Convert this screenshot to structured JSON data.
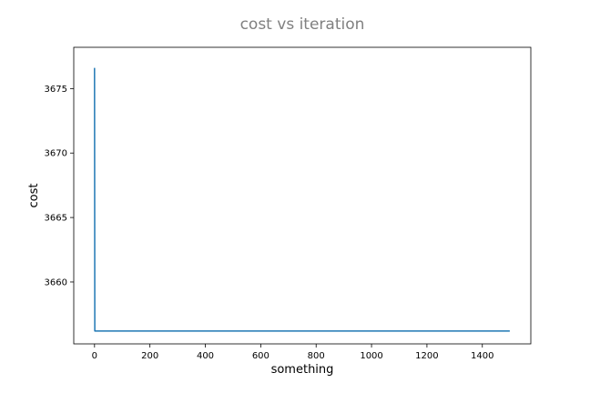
{
  "chart_data": {
    "type": "line",
    "title": "cost vs iteration",
    "xlabel": "something",
    "ylabel": "cost",
    "xlim": [
      -75,
      1575
    ],
    "ylim": [
      3655.2,
      3678.2
    ],
    "xticks": [
      0,
      200,
      400,
      600,
      800,
      1000,
      1200,
      1400
    ],
    "yticks": [
      3660,
      3665,
      3670,
      3675
    ],
    "grid": false,
    "series": [
      {
        "color": "#1f77b4",
        "x": [
          0,
          1,
          2,
          1499
        ],
        "y": [
          3676.6,
          3656.2,
          3656.2,
          3656.2
        ]
      }
    ]
  }
}
